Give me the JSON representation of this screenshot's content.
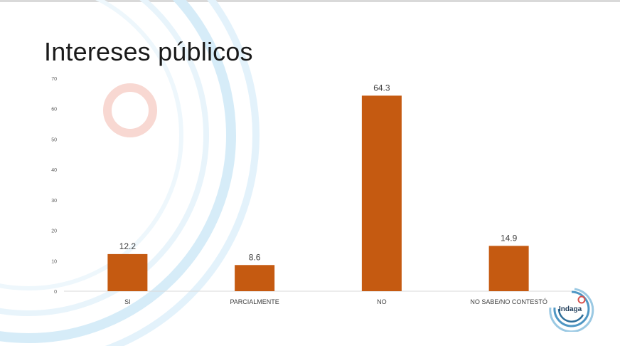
{
  "slide": {
    "title": "Intereses públicos",
    "logo_text": "Indaga"
  },
  "colors": {
    "bar": "#c55a11",
    "axis": "#d9d9d9",
    "tick_text": "#595959",
    "label_text": "#404040",
    "deco_blue": "#d6ecf8",
    "deco_red": "#f6d2cc"
  },
  "chart_data": {
    "type": "bar",
    "categories": [
      "SI",
      "PARCIALMENTE",
      "NO",
      "NO SABE/NO CONTESTÓ"
    ],
    "values": [
      12.2,
      8.6,
      64.3,
      14.9
    ],
    "data_labels": [
      "12.2",
      "8.6",
      "64.3",
      "14.9"
    ],
    "ylim": [
      0,
      70
    ],
    "yticks": [
      0,
      10,
      20,
      30,
      40,
      50,
      60,
      70
    ],
    "grid": false,
    "legend": "none"
  }
}
